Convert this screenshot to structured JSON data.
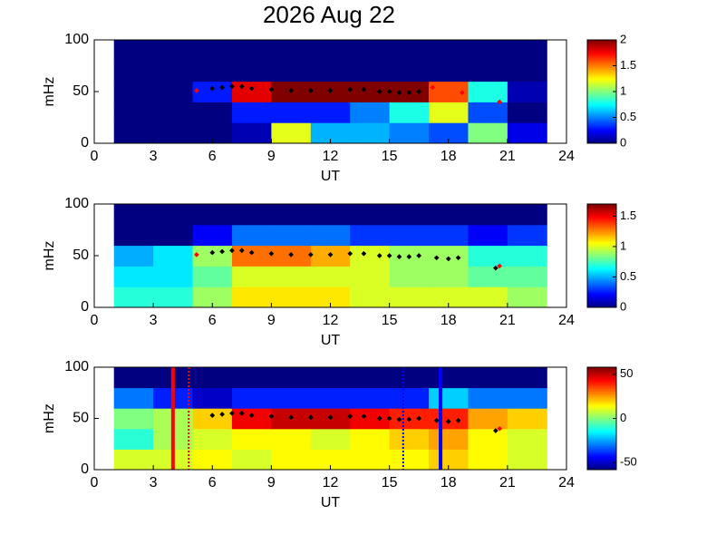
{
  "chart_data": [
    {
      "type": "heatmap",
      "title": "2026 Aug 22",
      "xlabel": "UT",
      "ylabel": "mHz",
      "xlim": [
        0,
        24
      ],
      "xticks": [
        0,
        3,
        6,
        9,
        12,
        15,
        18,
        21,
        24
      ],
      "ylim": [
        0,
        100
      ],
      "yticks": [
        0,
        50,
        100
      ],
      "clim": [
        0,
        2
      ],
      "cticks": [
        0,
        0.5,
        1,
        1.5,
        2
      ],
      "xbins": [
        1,
        3,
        5,
        7,
        9,
        11,
        13,
        15,
        17,
        19,
        21,
        23
      ],
      "ybins": [
        0,
        20,
        40,
        60,
        80,
        100
      ],
      "z": [
        [
          0,
          0,
          0,
          0.1,
          1.2,
          0.6,
          0.6,
          0.5,
          0.4,
          1.0,
          0.2
        ],
        [
          0,
          0,
          0,
          0.3,
          0.3,
          0.3,
          0.5,
          0.8,
          1.2,
          0.4,
          0
        ],
        [
          0,
          0,
          0.3,
          1.8,
          2,
          2,
          2,
          2,
          1.6,
          0.8,
          0.1
        ],
        [
          0,
          0,
          0,
          0,
          0,
          0,
          0,
          0,
          0,
          0,
          0
        ],
        [
          0,
          0,
          0,
          0,
          0,
          0,
          0,
          0,
          0,
          0,
          0
        ]
      ],
      "series": [
        {
          "color": "#000000",
          "x": [
            6,
            6.5,
            7,
            7.5,
            8,
            9,
            10,
            11,
            12,
            13,
            13.7,
            14.5,
            15,
            15.5,
            16,
            16.5
          ],
          "values": [
            53,
            54,
            55,
            55,
            53,
            52,
            51,
            51,
            51,
            52,
            52,
            50,
            50,
            49,
            49,
            50
          ]
        },
        {
          "color": "#ff0000",
          "x": [
            5.2,
            17.2,
            18.7,
            20.6
          ],
          "values": [
            51,
            54,
            49,
            40
          ]
        }
      ]
    },
    {
      "type": "heatmap",
      "xlabel": "UT",
      "ylabel": "mHz",
      "xlim": [
        0,
        24
      ],
      "xticks": [
        0,
        3,
        6,
        9,
        12,
        15,
        18,
        21,
        24
      ],
      "ylim": [
        0,
        100
      ],
      "yticks": [
        0,
        50,
        100
      ],
      "clim": [
        0,
        1.7
      ],
      "cticks": [
        0,
        0.5,
        1,
        1.5
      ],
      "xbins": [
        1,
        3,
        5,
        7,
        9,
        11,
        13,
        15,
        17,
        19,
        21,
        23
      ],
      "ybins": [
        0,
        20,
        40,
        60,
        80,
        100
      ],
      "z": [
        [
          0.7,
          0.7,
          0.9,
          1.1,
          1.1,
          1.1,
          1.0,
          1.0,
          1.0,
          1.0,
          0.9
        ],
        [
          0.6,
          0.6,
          0.8,
          1.0,
          1.0,
          1.0,
          1.0,
          0.9,
          0.9,
          0.8,
          0.8
        ],
        [
          0.5,
          0.6,
          0.9,
          1.3,
          1.3,
          1.2,
          1.0,
          0.9,
          0.9,
          0.7,
          0.7
        ],
        [
          0,
          0,
          0.2,
          0.4,
          0.4,
          0.4,
          0.3,
          0.3,
          0.3,
          0.2,
          0.3
        ],
        [
          0,
          0,
          0,
          0,
          0,
          0,
          0,
          0,
          0,
          0,
          0
        ]
      ],
      "series": [
        {
          "color": "#000000",
          "x": [
            6,
            6.5,
            7,
            7.5,
            8,
            9,
            10,
            11,
            12,
            13,
            13.7,
            14.5,
            15,
            15.5,
            16,
            16.5,
            17.4,
            18,
            18.5,
            20.4
          ],
          "values": [
            53,
            54,
            55,
            55,
            53,
            52,
            51,
            51,
            51,
            52,
            52,
            50,
            50,
            49,
            49,
            50,
            48,
            47,
            48,
            38
          ]
        },
        {
          "color": "#ff0000",
          "x": [
            5.2,
            20.6
          ],
          "values": [
            51,
            40
          ]
        }
      ]
    },
    {
      "type": "heatmap",
      "xlabel": "UT",
      "ylabel": "mHz",
      "xlim": [
        0,
        24
      ],
      "xticks": [
        0,
        3,
        6,
        9,
        12,
        15,
        18,
        21,
        24
      ],
      "ylim": [
        0,
        100
      ],
      "yticks": [
        0,
        50,
        100
      ],
      "clim": [
        -58,
        58
      ],
      "cticks": [
        -50,
        0,
        50
      ],
      "xbins": [
        1,
        3,
        5,
        7,
        9,
        11,
        13,
        15,
        17,
        19,
        21,
        23
      ],
      "ybins": [
        0,
        20,
        40,
        60,
        80,
        100
      ],
      "z": [
        [
          10,
          10,
          15,
          10,
          15,
          15,
          15,
          15,
          20,
          15,
          10
        ],
        [
          -10,
          5,
          10,
          15,
          15,
          10,
          15,
          20,
          25,
          15,
          10
        ],
        [
          0,
          5,
          20,
          45,
          50,
          50,
          45,
          40,
          40,
          25,
          20
        ],
        [
          -30,
          -40,
          -50,
          -40,
          -40,
          -40,
          -40,
          -40,
          -20,
          -30,
          -30
        ],
        [
          -58,
          -58,
          -58,
          -58,
          -58,
          -58,
          -58,
          -58,
          -58,
          -58,
          -58
        ]
      ],
      "series": [
        {
          "color": "#000000",
          "x": [
            6,
            6.5,
            7,
            7.5,
            8,
            9,
            10,
            11,
            12,
            13,
            13.7,
            14.5,
            15,
            15.5,
            16,
            16.5,
            17.4,
            18,
            18.5,
            20.4
          ],
          "values": [
            53,
            54,
            55,
            55,
            53,
            52,
            51,
            51,
            51,
            52,
            52,
            50,
            50,
            49,
            49,
            50,
            48,
            47,
            48,
            38
          ]
        },
        {
          "color": "#ff0000",
          "x": [
            20.6
          ],
          "values": [
            40
          ]
        }
      ],
      "vlines": [
        {
          "x": 4.0,
          "color": "#ff0000",
          "style": "solid"
        },
        {
          "x": 4.8,
          "color": "#ff0000",
          "style": "dotted"
        },
        {
          "x": 15.7,
          "color": "#0000ff",
          "style": "dotted"
        },
        {
          "x": 17.6,
          "color": "#0000ff",
          "style": "solid"
        }
      ]
    }
  ]
}
